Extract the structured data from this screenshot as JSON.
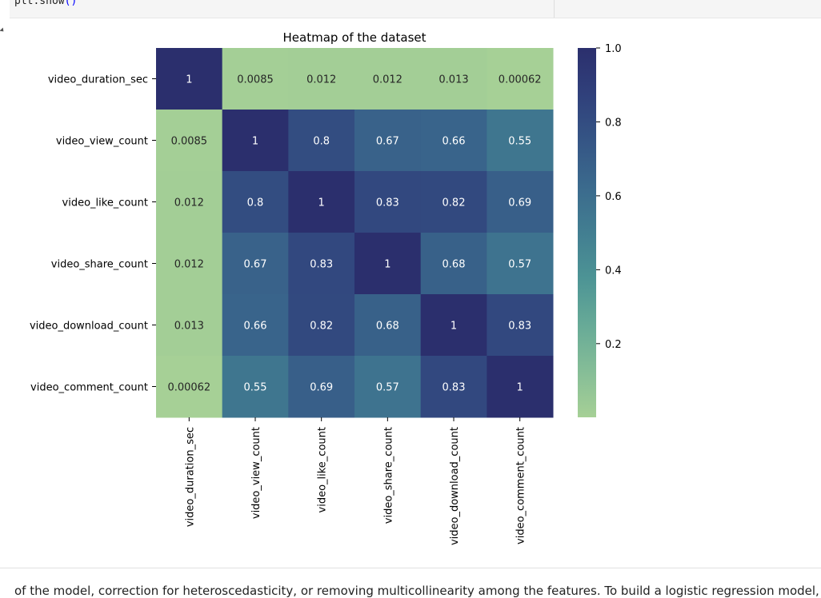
{
  "code_cell": {
    "line_text": "plt.show",
    "paren_text": "()"
  },
  "markdown_preview": "of the model, correction for heteroscedasticity, or removing multicollinearity among the features. To build a logistic regression model,",
  "chart_data": {
    "type": "heatmap",
    "title": "Heatmap of the dataset",
    "row_labels": [
      "video_duration_sec",
      "video_view_count",
      "video_like_count",
      "video_share_count",
      "video_download_count",
      "video_comment_count"
    ],
    "col_labels": [
      "video_duration_sec",
      "video_view_count",
      "video_like_count",
      "video_share_count",
      "video_download_count",
      "video_comment_count"
    ],
    "values": [
      [
        1,
        0.0085,
        0.012,
        0.012,
        0.013,
        0.00062
      ],
      [
        0.0085,
        1,
        0.8,
        0.67,
        0.66,
        0.55
      ],
      [
        0.012,
        0.8,
        1,
        0.83,
        0.82,
        0.69
      ],
      [
        0.012,
        0.67,
        0.83,
        1,
        0.68,
        0.57
      ],
      [
        0.013,
        0.66,
        0.82,
        0.68,
        1,
        0.83
      ],
      [
        0.00062,
        0.55,
        0.69,
        0.57,
        0.83,
        1
      ]
    ],
    "annotations": [
      [
        "1",
        "0.0085",
        "0.012",
        "0.012",
        "0.013",
        "0.00062"
      ],
      [
        "0.0085",
        "1",
        "0.8",
        "0.67",
        "0.66",
        "0.55"
      ],
      [
        "0.012",
        "0.8",
        "1",
        "0.83",
        "0.82",
        "0.69"
      ],
      [
        "0.012",
        "0.67",
        "0.83",
        "1",
        "0.68",
        "0.57"
      ],
      [
        "0.013",
        "0.66",
        "0.82",
        "0.68",
        "1",
        "0.83"
      ],
      [
        "0.00062",
        "0.55",
        "0.69",
        "0.57",
        "0.83",
        "1"
      ]
    ],
    "colormap": "crest",
    "vmin": 0.00062,
    "vmax": 1.0,
    "colorbar_ticks": [
      0.2,
      0.4,
      0.6,
      0.8,
      1.0
    ],
    "colorbar_tick_labels": [
      "0.2",
      "0.4",
      "0.6",
      "0.8",
      "1.0"
    ],
    "color_stops": [
      "#a6d096",
      "#85bd97",
      "#67aa97",
      "#4d9495",
      "#427e91",
      "#3b6a8d",
      "#355585",
      "#30407b",
      "#2b2f6d"
    ]
  }
}
